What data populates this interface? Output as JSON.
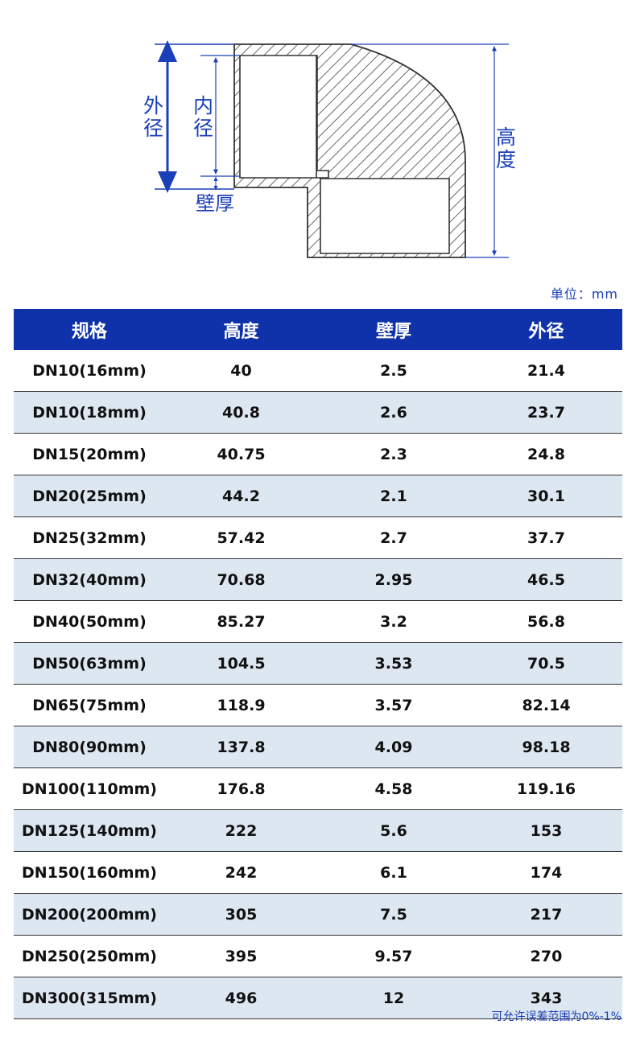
{
  "diagram": {
    "label_outer_diameter": "外径",
    "label_inner_diameter": "内径",
    "label_wall_thickness": "壁厚",
    "label_height": "高度",
    "line_color": "#1a3fb8",
    "hatch_color": "#444444"
  },
  "unit_label": "单位：mm",
  "table": {
    "header_bg": "#0f32aa",
    "alt_row_bg": "#dde7f2",
    "headers": [
      "规格",
      "高度",
      "壁厚",
      "外径"
    ],
    "rows": [
      [
        "DN10(16mm)",
        "40",
        "2.5",
        "21.4"
      ],
      [
        "DN10(18mm)",
        "40.8",
        "2.6",
        "23.7"
      ],
      [
        "DN15(20mm)",
        "40.75",
        "2.3",
        "24.8"
      ],
      [
        "DN20(25mm)",
        "44.2",
        "2.1",
        "30.1"
      ],
      [
        "DN25(32mm)",
        "57.42",
        "2.7",
        "37.7"
      ],
      [
        "DN32(40mm)",
        "70.68",
        "2.95",
        "46.5"
      ],
      [
        "DN40(50mm)",
        "85.27",
        "3.2",
        "56.8"
      ],
      [
        "DN50(63mm)",
        "104.5",
        "3.53",
        "70.5"
      ],
      [
        "DN65(75mm)",
        "118.9",
        "3.57",
        "82.14"
      ],
      [
        "DN80(90mm)",
        "137.8",
        "4.09",
        "98.18"
      ],
      [
        "DN100(110mm)",
        "176.8",
        "4.58",
        "119.16"
      ],
      [
        "DN125(140mm)",
        "222",
        "5.6",
        "153"
      ],
      [
        "DN150(160mm)",
        "242",
        "6.1",
        "174"
      ],
      [
        "DN200(200mm)",
        "305",
        "7.5",
        "217"
      ],
      [
        "DN250(250mm)",
        "395",
        "9.57",
        "270"
      ],
      [
        "DN300(315mm)",
        "496",
        "12",
        "343"
      ]
    ]
  },
  "footnote": "可允许误差范围为0%-1%"
}
